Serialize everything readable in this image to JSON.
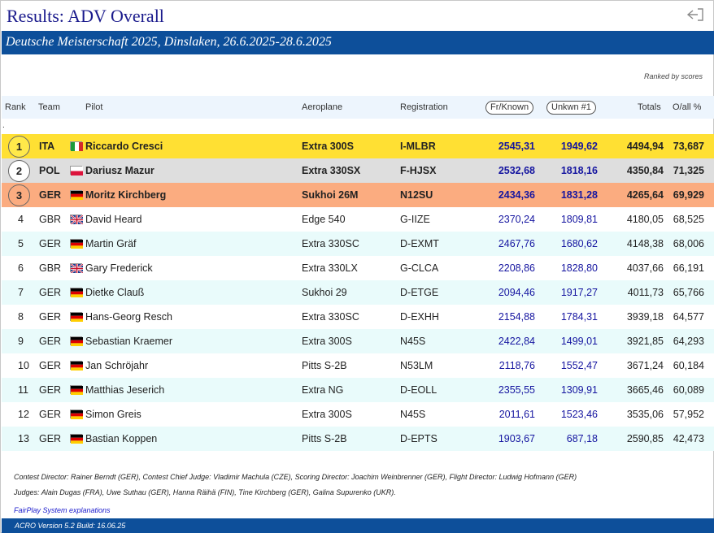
{
  "page": {
    "title": "Results: ADV Overall",
    "subtitle": "Deutsche Meisterschaft 2025, Dinslaken, 26.6.2025-28.6.2025",
    "ranked_note": "Ranked by scores",
    "row_marker": "."
  },
  "columns": {
    "rank": "Rank",
    "team": "Team",
    "pilot": "Pilot",
    "aeroplane": "Aeroplane",
    "registration": "Registration",
    "fr_known": "Fr/Known",
    "unkwn": "Unkwn #1",
    "totals": "Totals",
    "pct": "O/all %"
  },
  "rows": [
    {
      "rank": "1",
      "team": "ITA",
      "flag": "it",
      "pilot": "Riccardo Cresci",
      "aeroplane": "Extra 300S",
      "registration": "I-MLBR",
      "fr_known": "2545,31",
      "unkwn": "1949,62",
      "totals": "4494,94",
      "pct": "73,687"
    },
    {
      "rank": "2",
      "team": "POL",
      "flag": "pl",
      "pilot": "Dariusz Mazur",
      "aeroplane": "Extra 330SX",
      "registration": "F-HJSX",
      "fr_known": "2532,68",
      "unkwn": "1818,16",
      "totals": "4350,84",
      "pct": "71,325"
    },
    {
      "rank": "3",
      "team": "GER",
      "flag": "de",
      "pilot": "Moritz Kirchberg",
      "aeroplane": "Sukhoi 26M",
      "registration": "N12SU",
      "fr_known": "2434,36",
      "unkwn": "1831,28",
      "totals": "4265,64",
      "pct": "69,929"
    },
    {
      "rank": "4",
      "team": "GBR",
      "flag": "gb",
      "pilot": "David Heard",
      "aeroplane": "Edge 540",
      "registration": "G-IIZE",
      "fr_known": "2370,24",
      "unkwn": "1809,81",
      "totals": "4180,05",
      "pct": "68,525"
    },
    {
      "rank": "5",
      "team": "GER",
      "flag": "de",
      "pilot": "Martin Gräf",
      "aeroplane": "Extra 330SC",
      "registration": "D-EXMT",
      "fr_known": "2467,76",
      "unkwn": "1680,62",
      "totals": "4148,38",
      "pct": "68,006"
    },
    {
      "rank": "6",
      "team": "GBR",
      "flag": "gb",
      "pilot": "Gary Frederick",
      "aeroplane": "Extra 330LX",
      "registration": "G-CLCA",
      "fr_known": "2208,86",
      "unkwn": "1828,80",
      "totals": "4037,66",
      "pct": "66,191"
    },
    {
      "rank": "7",
      "team": "GER",
      "flag": "de",
      "pilot": "Dietke Clauß",
      "aeroplane": "Sukhoi 29",
      "registration": "D-ETGE",
      "fr_known": "2094,46",
      "unkwn": "1917,27",
      "totals": "4011,73",
      "pct": "65,766"
    },
    {
      "rank": "8",
      "team": "GER",
      "flag": "de",
      "pilot": "Hans-Georg Resch",
      "aeroplane": "Extra 330SC",
      "registration": "D-EXHH",
      "fr_known": "2154,88",
      "unkwn": "1784,31",
      "totals": "3939,18",
      "pct": "64,577"
    },
    {
      "rank": "9",
      "team": "GER",
      "flag": "de",
      "pilot": "Sebastian Kraemer",
      "aeroplane": "Extra 300S",
      "registration": "N45S",
      "fr_known": "2422,84",
      "unkwn": "1499,01",
      "totals": "3921,85",
      "pct": "64,293"
    },
    {
      "rank": "10",
      "team": "GER",
      "flag": "de",
      "pilot": "Jan Schröjahr",
      "aeroplane": "Pitts S-2B",
      "registration": "N53LM",
      "fr_known": "2118,76",
      "unkwn": "1552,47",
      "totals": "3671,24",
      "pct": "60,184"
    },
    {
      "rank": "11",
      "team": "GER",
      "flag": "de",
      "pilot": "Matthias Jeserich",
      "aeroplane": "Extra NG",
      "registration": "D-EOLL",
      "fr_known": "2355,55",
      "unkwn": "1309,91",
      "totals": "3665,46",
      "pct": "60,089"
    },
    {
      "rank": "12",
      "team": "GER",
      "flag": "de",
      "pilot": "Simon Greis",
      "aeroplane": "Extra 300S",
      "registration": "N45S",
      "fr_known": "2011,61",
      "unkwn": "1523,46",
      "totals": "3535,06",
      "pct": "57,952"
    },
    {
      "rank": "13",
      "team": "GER",
      "flag": "de",
      "pilot": "Bastian Koppen",
      "aeroplane": "Pitts S-2B",
      "registration": "D-EPTS",
      "fr_known": "1903,67",
      "unkwn": "687,18",
      "totals": "2590,85",
      "pct": "42,473"
    }
  ],
  "footer": {
    "officials": "Contest Director: Rainer Berndt (GER), Contest Chief Judge: Vladimir Machula (CZE), Scoring Director: Joachim Weinbrenner (GER), Flight Director: Ludwig Hofmann (GER)",
    "judges": "Judges:  Alain Dugas (FRA), Uwe Suthau (GER), Hanna Räihä (FIN), Tine Kirchberg (GER), Galina Supurenko (UKR).",
    "fairplay_link": "FairPlay System explanations",
    "version": "ACRO Version 5.2 Build: 16.06.25"
  },
  "colors": {
    "brand_blue": "#0d4f9a",
    "title_blue": "#1a1a8c",
    "gold": "#ffe033",
    "silver": "#dedede",
    "bronze": "#fbac80",
    "stripe": "#e9fbfb",
    "header_bg": "#edf5fd"
  },
  "icons": {
    "back": "arrow-left-to-bracket-icon"
  }
}
